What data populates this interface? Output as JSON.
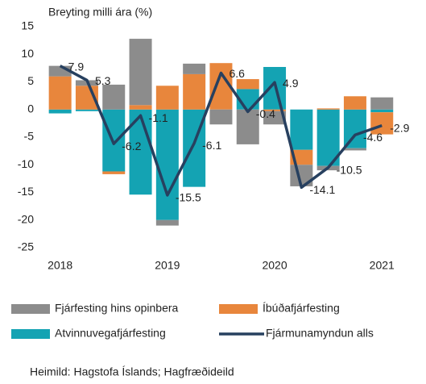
{
  "chart_data": {
    "type": "bar",
    "stacked": true,
    "y_axis_label": "Breyting  milli ára (%)",
    "source": "Heimild: Hagstofa Íslands; Hagfræðideild",
    "categories": [
      "2018",
      null,
      null,
      null,
      "2019",
      null,
      null,
      null,
      "2020",
      null,
      null,
      null,
      "2021"
    ],
    "series": [
      {
        "name": "Atvinnuvegafjárfesting",
        "color": "#14a3b3",
        "values": [
          -0.7,
          -0.3,
          -11.2,
          -15.4,
          -20,
          -14,
          0,
          3.7,
          7.7,
          -7.3,
          -10.2,
          -7,
          -0.5
        ]
      },
      {
        "name": "Íbúðafjárfesting",
        "color": "#e8863c",
        "values": [
          6,
          4.3,
          -0.5,
          0.8,
          4.3,
          6.4,
          8.4,
          1.8,
          -0.3,
          -2.7,
          0.2,
          2.4,
          -4
        ]
      },
      {
        "name": "Fjárfesting hins opinbera",
        "color": "#8c8c8c",
        "values": [
          1.9,
          1,
          4.5,
          12,
          -1,
          1.9,
          -2.7,
          -6.3,
          -2.4,
          -3.9,
          -0.8,
          -0.4,
          2.2
        ]
      },
      {
        "name": "Fjármunamyndun alls",
        "type": "line",
        "color": "#27405f",
        "values": [
          7.9,
          5.3,
          -6.2,
          -1.1,
          -15.5,
          -6.1,
          6.6,
          -0.4,
          4.9,
          -14.1,
          -10.5,
          -4.6,
          -2.9
        ]
      }
    ],
    "ylim": [
      -25,
      15
    ],
    "yticks": [
      -25,
      -20,
      -15,
      -10,
      -5,
      0,
      5,
      10,
      15
    ],
    "grid": false
  }
}
